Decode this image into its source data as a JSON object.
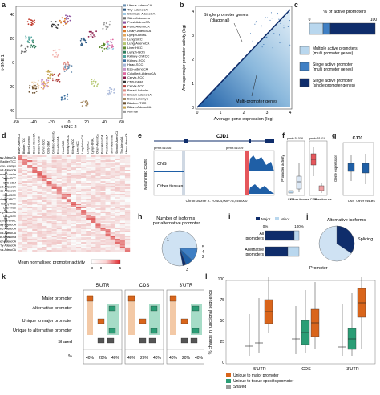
{
  "panel_labels": [
    "a",
    "b",
    "c",
    "d",
    "e",
    "f",
    "g",
    "h",
    "i",
    "j",
    "k",
    "l"
  ],
  "panel_a": {
    "xlabel": "t-SNE 2",
    "ylabel": "t-SNE 1",
    "x_ticks": [
      "-60",
      "-40",
      "-20",
      "0",
      "20",
      "40",
      "60"
    ],
    "y_ticks": [
      "40",
      "20",
      "0",
      "-20",
      "-40"
    ],
    "legend": [
      {
        "label": "Uterus-AdenoCA",
        "color": "#6a8fb0"
      },
      {
        "label": "Thy-AdenoCA",
        "color": "#2f5b86"
      },
      {
        "label": "Stomach-AdenoCA",
        "color": "#9fc9e3"
      },
      {
        "label": "Skin-Melanoma",
        "color": "#6d6d6d"
      },
      {
        "label": "Prost-AdenoCA",
        "color": "#8a4f9e"
      },
      {
        "label": "Panc-AdenoCA",
        "color": "#c0392b"
      },
      {
        "label": "Ovary-AdenoCA",
        "color": "#d97b29"
      },
      {
        "label": "Lymph-BNHL",
        "color": "#e3a65a"
      },
      {
        "label": "Lung-SCC",
        "color": "#e9c8a0"
      },
      {
        "label": "Lung-AdenoCA",
        "color": "#b5c770"
      },
      {
        "label": "Liver-HCC",
        "color": "#5f8a2e"
      },
      {
        "label": "Lymph-NOS",
        "color": "#2e7d5b"
      },
      {
        "label": "Kidney-ChRCC",
        "color": "#50a6a0"
      },
      {
        "label": "Kidney-RCC",
        "color": "#3c6f9f"
      },
      {
        "label": "Head-SCC",
        "color": "#a6b6d8"
      },
      {
        "label": "Eso-AdenoCA",
        "color": "#c994c7"
      },
      {
        "label": "ColoRect-AdenoCA",
        "color": "#e066a0"
      },
      {
        "label": "Cervix-SCC",
        "color": "#8b1a4a"
      },
      {
        "label": "CNS-GBM",
        "color": "#333333"
      },
      {
        "label": "Cervix-SCC",
        "color": "#b0413e"
      },
      {
        "label": "Breast-Lobular",
        "color": "#e0867d"
      },
      {
        "label": "Breast-AdenoCA",
        "color": "#f4b6b1"
      },
      {
        "label": "Bone-Leiomyo",
        "color": "#a68a64"
      },
      {
        "label": "Bladder-TCC",
        "color": "#6b4f2e"
      },
      {
        "label": "Biliary-AdenoCA",
        "color": "#c4a24c"
      },
      {
        "label": "Normal",
        "color": "#999999"
      }
    ]
  },
  "panel_b": {
    "xlabel": "Average gene expression (log)",
    "ylabel": "Average major promoter activity (log)",
    "x_ticks": [
      "0",
      "1",
      "2",
      "3",
      "4"
    ],
    "y_ticks": [
      "0",
      "1",
      "2",
      "3",
      "4"
    ],
    "annotation_diagonal": "Single promoter genes\n(diagonal)",
    "annotation_multi": "Multi-promoter genes"
  },
  "panel_c": {
    "title": "% of active promoters",
    "ticks": [
      "0",
      "100"
    ],
    "legend": [
      {
        "label": "Multiple active promoters\n(multi promoter genes)",
        "color": "#b9d7ee"
      },
      {
        "label": "Single active promoter\n(multi promoter genes)",
        "color": "#3f7fc4"
      },
      {
        "label": "Single active promoter\n(single promoter genes)",
        "color": "#0f2d6b"
      }
    ]
  },
  "panel_d": {
    "ylabel": "Tissue-specific alternative promoters",
    "colorbar_label": "Mean normalised promoter activity",
    "colorbar_ticks": [
      "-3",
      "0",
      "5"
    ],
    "tissues": [
      "Biliary-AdenoCA",
      "Bladder-TCC",
      "Bone-Leiomyo",
      "Breast-AdenoCA",
      "Breast-Lobular",
      "Cervix-SCC",
      "CNS-GBM",
      "ColoRect-AdenoCA",
      "Eso-AdenoCA",
      "Head-SCC",
      "Kidney-ChRCC",
      "Kidney-RCC",
      "Liver-HCC",
      "Lung-AdenoCA",
      "Lung-SCC",
      "Lymph-BNHL",
      "Ovary-AdenoCA",
      "Panc-AdenoCA",
      "Prost-AdenoCA",
      "Skin-Melanoma",
      "Stomach-AdenoCA",
      "Thy-AdenoCA",
      "Uterus-AdenoCA"
    ]
  },
  "panel_e": {
    "gene": "CJD1",
    "promoter_1": "prmtr.51016",
    "promoter_2": "prmtr.51019",
    "track_top": "CNS",
    "track_bottom": "Other tissues",
    "ylabel": "Mean read count",
    "xlabel": "Chromosome X: 70,404,000-73,446,000"
  },
  "panel_f": {
    "ylabel": "Promoter activity",
    "left_title": "prmtr.51016",
    "right_title": "prmtr.51019",
    "categories": [
      "CNS",
      "Other tissues"
    ]
  },
  "panel_g": {
    "title": "CJD1",
    "ylabel": "Gene expression",
    "categories": [
      "CNS",
      "Other tissues"
    ]
  },
  "panel_h": {
    "title": "Number of isoforms\nper alternative promoter",
    "slices": [
      "1",
      "2",
      "3",
      "4",
      "5"
    ]
  },
  "panel_i": {
    "legend": [
      {
        "label": "Major",
        "color": "#0f2d6b"
      },
      {
        "label": "Minor",
        "color": "#b9d7ee"
      }
    ],
    "axis": [
      "0%",
      "100%"
    ],
    "rows": [
      "All\npromoters",
      "Alternative\npromoters"
    ]
  },
  "panel_j": {
    "title": "Alternative isoforms",
    "labels": [
      "Splicing",
      "Promoter"
    ]
  },
  "panel_k": {
    "headers": [
      "5'UTR",
      "CDS",
      "3'UTR"
    ],
    "rows": [
      "Major promoter",
      "Alternative promoter",
      "Unique to major promoter",
      "Unique to alternative promoter",
      "Shared",
      "%"
    ],
    "percents": [
      "40%",
      "20%",
      "40%",
      "40%",
      "20%",
      "40%",
      "40%",
      "20%",
      "40%"
    ]
  },
  "panel_l": {
    "ylabel": "% change in functional sequence",
    "y_ticks": [
      "0",
      "25",
      "50",
      "75",
      "100"
    ],
    "categories": [
      "5'UTR",
      "CDS",
      "3'UTR"
    ],
    "legend": [
      {
        "label": "Unique to major promoter",
        "color": "#d9651b"
      },
      {
        "label": "Unique to tissue specific promoter",
        "color": "#2a9d75"
      },
      {
        "label": "Shared",
        "color": "#9a9a9a"
      }
    ]
  }
}
